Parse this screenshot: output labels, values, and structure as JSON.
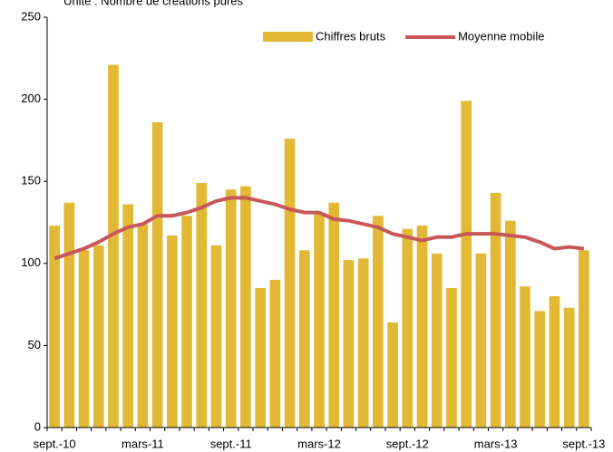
{
  "chart_data": {
    "type": "bar",
    "subtitle": "Unité : Nombre de créations pures",
    "categories": [
      "sept.-10",
      null,
      null,
      null,
      null,
      null,
      "mars-11",
      null,
      null,
      null,
      null,
      null,
      "sept.-11",
      null,
      null,
      null,
      null,
      null,
      "mars-12",
      null,
      null,
      null,
      null,
      null,
      "sept.-12",
      null,
      null,
      null,
      null,
      null,
      "mars-13",
      null,
      null,
      null,
      null,
      null,
      "sept.-13"
    ],
    "series": [
      {
        "name": "Chiffres bruts",
        "type": "bar",
        "color": "#e2b935",
        "values": [
          123,
          137,
          108,
          111,
          221,
          136,
          124,
          186,
          117,
          129,
          149,
          111,
          145,
          147,
          85,
          90,
          176,
          108,
          130,
          137,
          102,
          103,
          129,
          64,
          121,
          123,
          106,
          85,
          199,
          106,
          143,
          126,
          86,
          71,
          80,
          73,
          108
        ]
      },
      {
        "name": "Moyenne mobile",
        "type": "line",
        "color": "#c8575a",
        "values": [
          103,
          106,
          109,
          113,
          118,
          122,
          124,
          129,
          129,
          131,
          134,
          138,
          140,
          140,
          138,
          136,
          133,
          131,
          131,
          127,
          126,
          124,
          122,
          118,
          116,
          114,
          116,
          116,
          118,
          118,
          118,
          117,
          116,
          113,
          109,
          110,
          109
        ]
      }
    ],
    "ylim": [
      0,
      250
    ],
    "yticks": [
      0,
      50,
      100,
      150,
      200,
      250
    ],
    "legend": "top-right"
  }
}
